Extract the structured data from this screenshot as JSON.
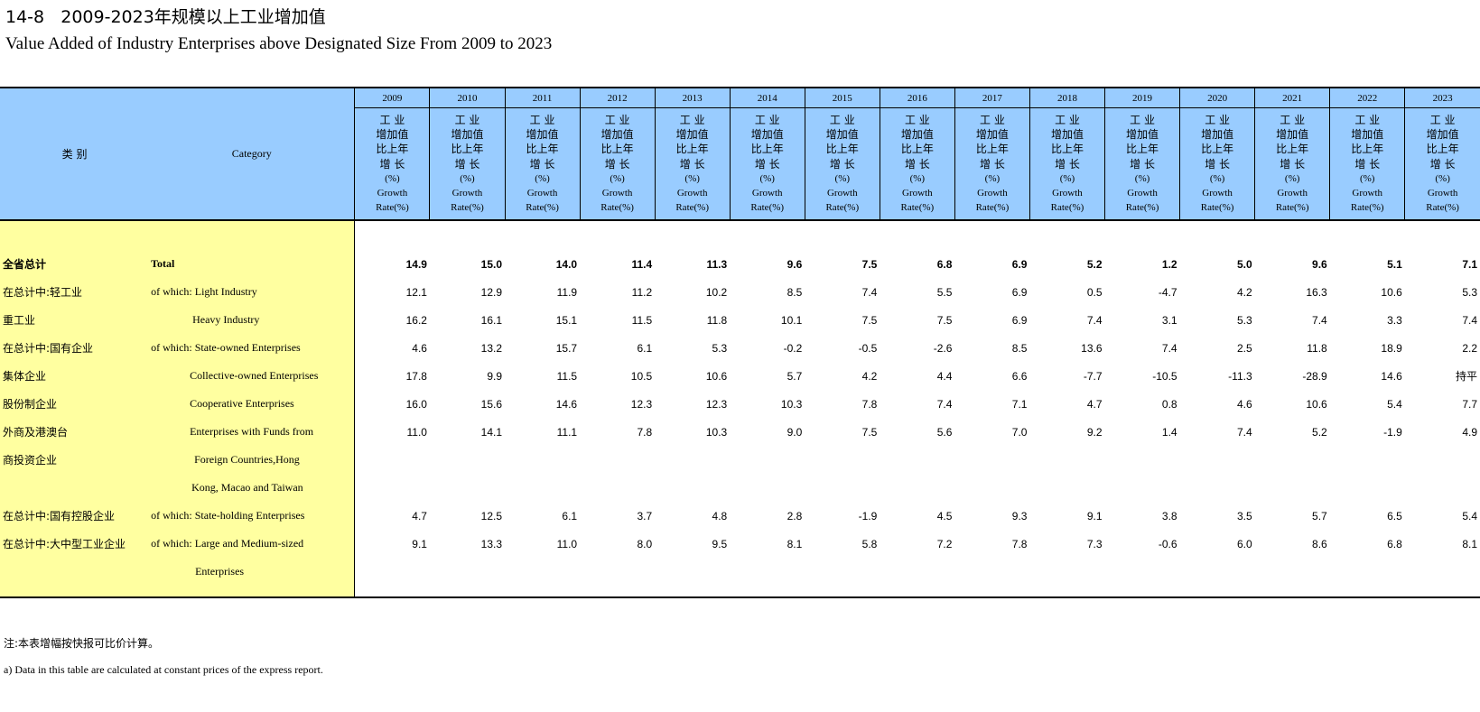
{
  "title_cn": "14-8   2009-2023年规模以上工业增加值",
  "title_en": "Value Added of Industry Enterprises above Designated Size From 2009 to 2023",
  "header": {
    "cat_cn": "类  别",
    "cat_en": "Category",
    "years": [
      "2009",
      "2010",
      "2011",
      "2012",
      "2013",
      "2014",
      "2015",
      "2016",
      "2017",
      "2018",
      "2019",
      "2020",
      "2021",
      "2022",
      "2023"
    ],
    "col_desc": {
      "cn1": "工 业",
      "cn2": "增加值",
      "cn3": "比上年",
      "cn4": "增  长",
      "pct": "(%)",
      "en1": "Growth",
      "en2": "Rate(%)"
    }
  },
  "rows": [
    {
      "cn": "全省总计",
      "en": "Total",
      "bold": true,
      "values": [
        "14.9",
        "15.0",
        "14.0",
        "11.4",
        "11.3",
        "9.6",
        "7.5",
        "6.8",
        "6.9",
        "5.2",
        "1.2",
        "5.0",
        "9.6",
        "5.1",
        "7.1"
      ]
    },
    {
      "cn": "在总计中:轻工业",
      "en": "of which: Light Industry",
      "values": [
        "12.1",
        "12.9",
        "11.9",
        "11.2",
        "10.2",
        "8.5",
        "7.4",
        "5.5",
        "6.9",
        "0.5",
        "-4.7",
        "4.2",
        "16.3",
        "10.6",
        "5.3"
      ]
    },
    {
      "cn": "重工业",
      "en": "Heavy Industry",
      "values": [
        "16.2",
        "16.1",
        "15.1",
        "11.5",
        "11.8",
        "10.1",
        "7.5",
        "7.5",
        "6.9",
        "7.4",
        "3.1",
        "5.3",
        "7.4",
        "3.3",
        "7.4"
      ]
    },
    {
      "cn": "在总计中:国有企业",
      "en": "of which: State-owned Enterprises",
      "values": [
        "4.6",
        "13.2",
        "15.7",
        "6.1",
        "5.3",
        "-0.2",
        "-0.5",
        "-2.6",
        "8.5",
        "13.6",
        "7.4",
        "2.5",
        "11.8",
        "18.9",
        "2.2"
      ]
    },
    {
      "cn": "集体企业",
      "en": "Collective-owned Enterprises",
      "values": [
        "17.8",
        "9.9",
        "11.5",
        "10.5",
        "10.6",
        "5.7",
        "4.2",
        "4.4",
        "6.6",
        "-7.7",
        "-10.5",
        "-11.3",
        "-28.9",
        "14.6",
        "持平"
      ]
    },
    {
      "cn": "股份制企业",
      "en": "Cooperative Enterprises",
      "values": [
        "16.0",
        "15.6",
        "14.6",
        "12.3",
        "12.3",
        "10.3",
        "7.8",
        "7.4",
        "7.1",
        "4.7",
        "0.8",
        "4.6",
        "10.6",
        "5.4",
        "7.7"
      ]
    },
    {
      "cn": "外商及港澳台",
      "en": "Enterprises with Funds from",
      "values": [
        "11.0",
        "14.1",
        "11.1",
        "7.8",
        "10.3",
        "9.0",
        "7.5",
        "5.6",
        "7.0",
        "9.2",
        "1.4",
        "7.4",
        "5.2",
        "-1.9",
        "4.9"
      ]
    },
    {
      "cn": "商投资企业",
      "en": "Foreign Countries,Hong",
      "values": []
    },
    {
      "cn": "",
      "en": "Kong, Macao and Taiwan",
      "values": []
    },
    {
      "cn": "在总计中:国有控股企业",
      "en": "of which: State-holding Enterprises",
      "values": [
        "4.7",
        "12.5",
        "6.1",
        "3.7",
        "4.8",
        "2.8",
        "-1.9",
        "4.5",
        "9.3",
        "9.1",
        "3.8",
        "3.5",
        "5.7",
        "6.5",
        "5.4"
      ]
    },
    {
      "cn": "在总计中:大中型工业企业",
      "en": "of which: Large and Medium-sized",
      "values": [
        "9.1",
        "13.3",
        "11.0",
        "8.0",
        "9.5",
        "8.1",
        "5.8",
        "7.2",
        "7.8",
        "7.3",
        "-0.6",
        "6.0",
        "8.6",
        "6.8",
        "8.1"
      ]
    },
    {
      "cn": "",
      "en": "Enterprises",
      "values": []
    }
  ],
  "notes": {
    "cn": "注:本表增幅按快报可比价计算。",
    "en": "a) Data in this table are calculated at constant prices of the express report."
  }
}
